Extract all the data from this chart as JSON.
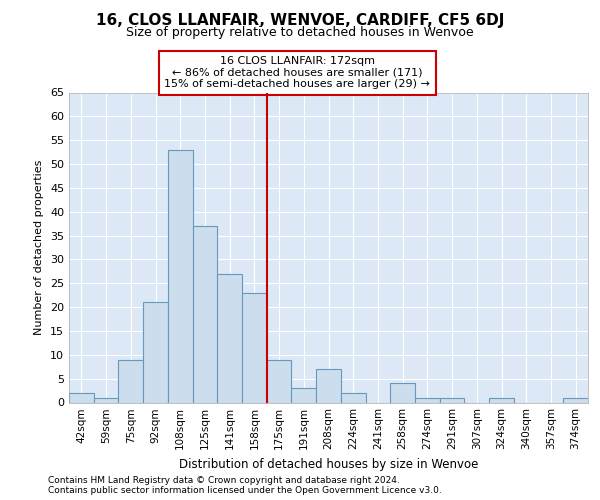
{
  "title": "16, CLOS LLANFAIR, WENVOE, CARDIFF, CF5 6DJ",
  "subtitle": "Size of property relative to detached houses in Wenvoe",
  "xlabel": "Distribution of detached houses by size in Wenvoe",
  "ylabel": "Number of detached properties",
  "bar_labels": [
    "42sqm",
    "59sqm",
    "75sqm",
    "92sqm",
    "108sqm",
    "125sqm",
    "141sqm",
    "158sqm",
    "175sqm",
    "191sqm",
    "208sqm",
    "224sqm",
    "241sqm",
    "258sqm",
    "274sqm",
    "291sqm",
    "307sqm",
    "324sqm",
    "340sqm",
    "357sqm",
    "374sqm"
  ],
  "bar_values": [
    2,
    1,
    9,
    21,
    53,
    37,
    27,
    23,
    9,
    3,
    7,
    2,
    0,
    4,
    1,
    1,
    0,
    1,
    0,
    0,
    1
  ],
  "bar_color": "#ccdded",
  "bar_edge_color": "#6699bb",
  "vline_x": 7.5,
  "annotation_title": "16 CLOS LLANFAIR: 172sqm",
  "annotation_line1": "← 86% of detached houses are smaller (171)",
  "annotation_line2": "15% of semi-detached houses are larger (29) →",
  "vline_color": "#cc0000",
  "annotation_box_edgecolor": "#cc0000",
  "ylim": [
    0,
    65
  ],
  "yticks": [
    0,
    5,
    10,
    15,
    20,
    25,
    30,
    35,
    40,
    45,
    50,
    55,
    60,
    65
  ],
  "footer1": "Contains HM Land Registry data © Crown copyright and database right 2024.",
  "footer2": "Contains public sector information licensed under the Open Government Licence v3.0.",
  "bg_color": "#dce8f5",
  "grid_color": "#ffffff",
  "title_fontsize": 11,
  "subtitle_fontsize": 9,
  "ylabel_fontsize": 8,
  "xlabel_fontsize": 8.5,
  "tick_fontsize": 7.5,
  "ytick_fontsize": 8,
  "footer_fontsize": 6.5,
  "ann_fontsize": 8
}
